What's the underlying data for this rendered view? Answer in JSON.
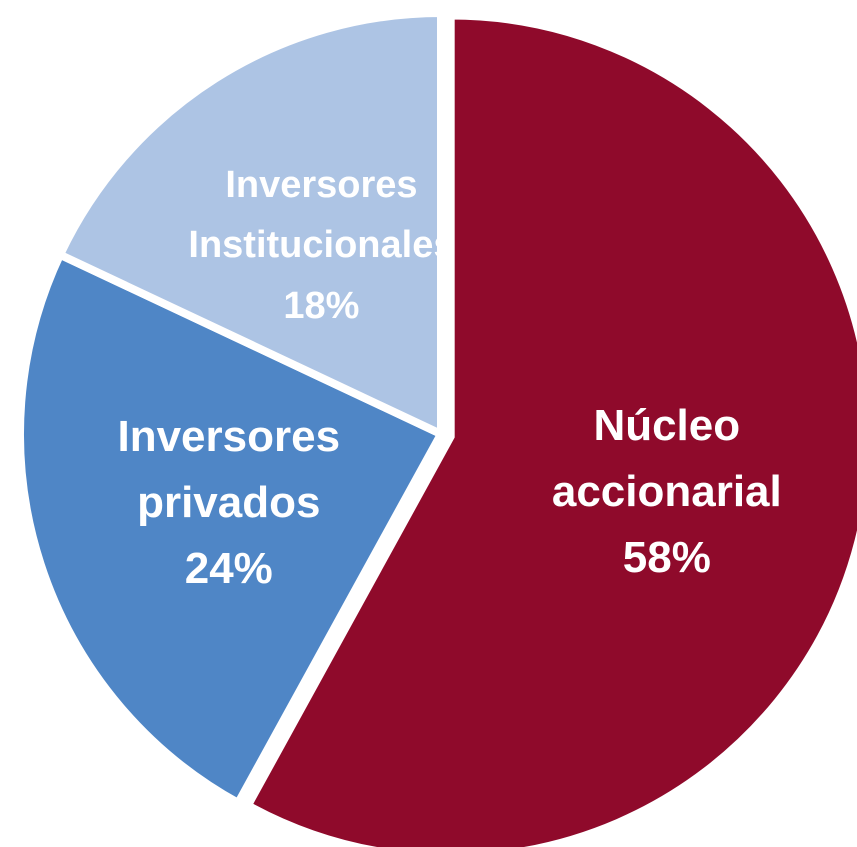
{
  "chart_data": {
    "type": "pie",
    "categories": [
      "Núcleo accionarial",
      "Inversores privados",
      "Inversores Institucionales"
    ],
    "values": [
      58,
      24,
      18
    ],
    "value_labels": [
      "58%",
      "24%",
      "18%"
    ],
    "colors": [
      "#8f0a2b",
      "#4f86c6",
      "#adc4e4"
    ]
  }
}
